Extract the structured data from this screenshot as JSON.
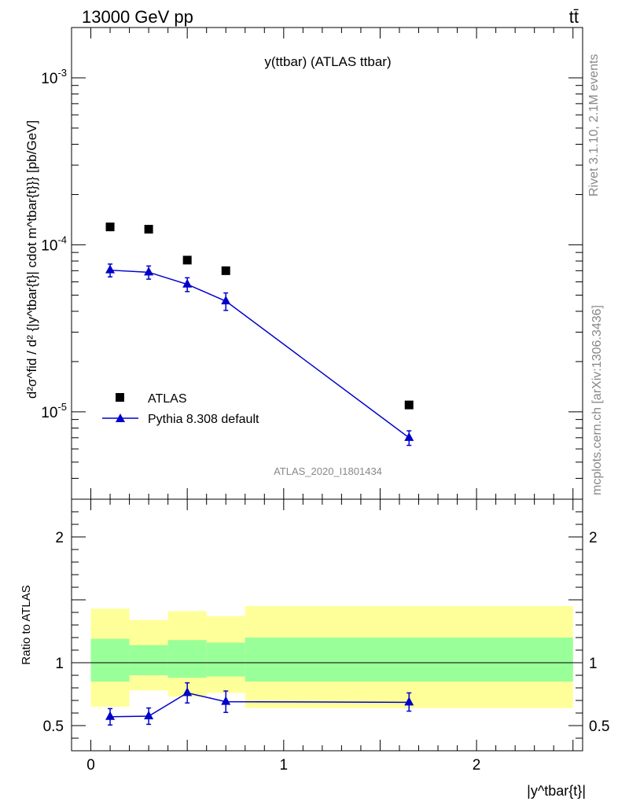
{
  "header": {
    "energy_label": "13000 GeV pp",
    "process_label": "tt̄"
  },
  "side_text": {
    "rivet": "Rivet 3.1.10,  2.1M events",
    "mcplots": "mcplots.cern.ch [arXiv:1306.3436]"
  },
  "chart_data": [
    {
      "type": "scatter",
      "panel": "main",
      "title": "y(ttbar) (ATLAS ttbar)",
      "analysis_label": "ATLAS_2020_I1801434",
      "ylabel": "d²σ^fid / d² {|y^tbar{t}| cdot m^tbar{t}}} [pb/GeV]",
      "yscale": "log",
      "ylim": [
        3e-06,
        0.002
      ],
      "xlim": [
        -0.1,
        2.55
      ],
      "y_ticks": [
        {
          "value": 0.001,
          "label": "10^-3"
        },
        {
          "value": 0.0001,
          "label": "10^-4"
        },
        {
          "value": 1e-05,
          "label": "10^-5"
        }
      ],
      "legend": {
        "placement": "bottom-left"
      },
      "series": [
        {
          "name": "ATLAS",
          "color": "#000000",
          "marker": "square",
          "x": [
            0.1,
            0.3,
            0.5,
            0.7,
            1.65
          ],
          "y": [
            0.000128,
            0.000124,
            8.1e-05,
            7e-05,
            1.1e-05
          ]
        },
        {
          "name": "Pythia 8.308 default",
          "color": "#0000cc",
          "marker": "triangle",
          "line": true,
          "x": [
            0.1,
            0.3,
            0.5,
            0.7,
            1.65
          ],
          "y": [
            7.05e-05,
            6.85e-05,
            5.8e-05,
            4.6e-05,
            7e-06
          ],
          "yerr_low": [
            6.2e-06,
            6.2e-06,
            5.5e-06,
            5.5e-06,
            7e-07
          ],
          "yerr_high": [
            6.2e-06,
            6.2e-06,
            5.5e-06,
            5.5e-06,
            7e-07
          ]
        }
      ]
    },
    {
      "type": "scatter",
      "panel": "ratio",
      "ylabel": "Ratio to ATLAS",
      "xlabel": "|y^tbar{t}|",
      "ylim": [
        0.3,
        2.3
      ],
      "xlim": [
        -0.1,
        2.55
      ],
      "y_ticks": [
        {
          "value": 0.5,
          "label": "0.5"
        },
        {
          "value": 1,
          "label": "1"
        },
        {
          "value": 2,
          "label": "2"
        }
      ],
      "x_ticks": [
        {
          "value": 0,
          "label": "0"
        },
        {
          "value": 1,
          "label": "1"
        },
        {
          "value": 2,
          "label": "2"
        }
      ],
      "bands": {
        "bins": [
          [
            0.0,
            0.2
          ],
          [
            0.2,
            0.4
          ],
          [
            0.4,
            0.6
          ],
          [
            0.6,
            0.8
          ],
          [
            0.8,
            2.5
          ]
        ],
        "yellow_low": [
          0.65,
          0.78,
          0.73,
          0.76,
          0.64
        ],
        "yellow_high": [
          1.43,
          1.34,
          1.41,
          1.37,
          1.45
        ],
        "green_low": [
          0.85,
          0.9,
          0.88,
          0.89,
          0.85
        ],
        "green_high": [
          1.19,
          1.14,
          1.18,
          1.16,
          1.2
        ],
        "yellow_color": "#ffff99",
        "green_color": "#99ff99"
      },
      "series": [
        {
          "name": "Pythia 8.308 default",
          "color": "#0000cc",
          "marker": "triangle",
          "line": true,
          "x": [
            0.1,
            0.3,
            0.5,
            0.7,
            1.65
          ],
          "y": [
            0.57,
            0.575,
            0.76,
            0.69,
            0.685
          ],
          "yerr_low": [
            0.065,
            0.065,
            0.08,
            0.085,
            0.07
          ],
          "yerr_high": [
            0.065,
            0.065,
            0.08,
            0.085,
            0.075
          ]
        }
      ]
    }
  ]
}
